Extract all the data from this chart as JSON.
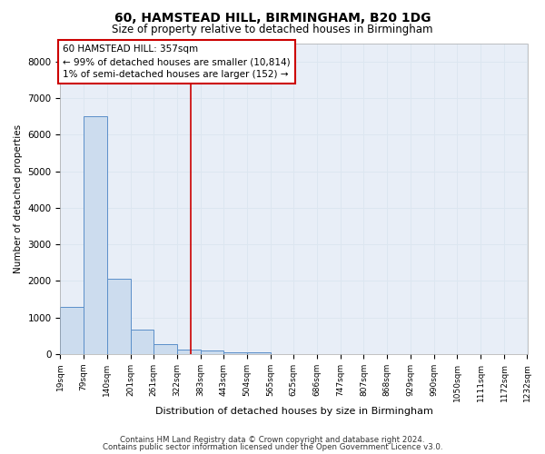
{
  "title": "60, HAMSTEAD HILL, BIRMINGHAM, B20 1DG",
  "subtitle": "Size of property relative to detached houses in Birmingham",
  "xlabel": "Distribution of detached houses by size in Birmingham",
  "ylabel": "Number of detached properties",
  "footer1": "Contains HM Land Registry data © Crown copyright and database right 2024.",
  "footer2": "Contains public sector information licensed under the Open Government Licence v3.0.",
  "annotation_line1": "60 HAMSTEAD HILL: 357sqm",
  "annotation_line2": "← 99% of detached houses are smaller (10,814)",
  "annotation_line3": "1% of semi-detached houses are larger (152) →",
  "property_size": 357,
  "bar_color": "#ccdcee",
  "bar_edge_color": "#5b8fc9",
  "vline_color": "#cc0000",
  "annotation_box_color": "#cc0000",
  "grid_color": "#dce6f0",
  "background_color": "#e8eef7",
  "bins": [
    19,
    79,
    140,
    201,
    261,
    322,
    383,
    443,
    504,
    565,
    625,
    686,
    747,
    807,
    868,
    929,
    990,
    1050,
    1111,
    1172,
    1232
  ],
  "bin_labels": [
    "19sqm",
    "79sqm",
    "140sqm",
    "201sqm",
    "261sqm",
    "322sqm",
    "383sqm",
    "443sqm",
    "504sqm",
    "565sqm",
    "625sqm",
    "686sqm",
    "747sqm",
    "807sqm",
    "868sqm",
    "929sqm",
    "990sqm",
    "1050sqm",
    "1111sqm",
    "1172sqm",
    "1232sqm"
  ],
  "counts": [
    1300,
    6500,
    2050,
    670,
    280,
    130,
    95,
    55,
    45,
    0,
    0,
    0,
    0,
    0,
    0,
    0,
    0,
    0,
    0,
    0
  ],
  "ylim": [
    0,
    8500
  ],
  "yticks": [
    0,
    1000,
    2000,
    3000,
    4000,
    5000,
    6000,
    7000,
    8000
  ]
}
